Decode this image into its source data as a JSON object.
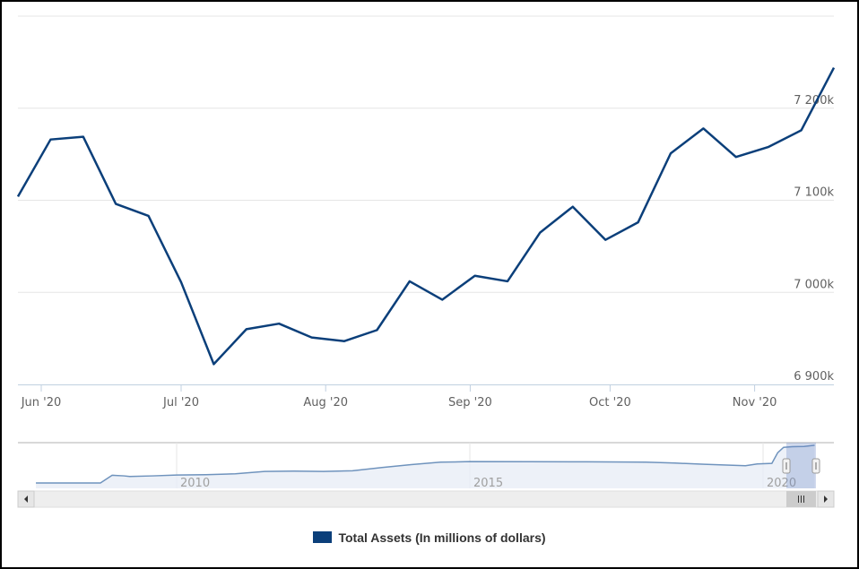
{
  "chart_data": {
    "type": "line",
    "title": "",
    "xlabel": "",
    "ylabel": "",
    "series": [
      {
        "name": "Total Assets (In millions of dollars)",
        "color": "#0b3f7a",
        "x": [
          "2020-05-27",
          "2020-06-03",
          "2020-06-10",
          "2020-06-17",
          "2020-06-24",
          "2020-07-01",
          "2020-07-08",
          "2020-07-15",
          "2020-07-22",
          "2020-07-29",
          "2020-08-05",
          "2020-08-12",
          "2020-08-19",
          "2020-08-26",
          "2020-09-02",
          "2020-09-09",
          "2020-09-16",
          "2020-09-23",
          "2020-09-30",
          "2020-10-07",
          "2020-10-14",
          "2020-10-21",
          "2020-10-28",
          "2020-11-04",
          "2020-11-11",
          "2020-11-18"
        ],
        "y": [
          7104000,
          7166000,
          7169000,
          7096000,
          7083000,
          7011000,
          6922000,
          6960000,
          6966000,
          6951000,
          6947000,
          6959000,
          7012000,
          6992000,
          7018000,
          7012000,
          7065000,
          7093000,
          7057000,
          7076000,
          7151000,
          7178000,
          7147000,
          7158000,
          7176000,
          7244000
        ]
      }
    ],
    "ylim": [
      6900000,
      7300000
    ],
    "yticks": [
      {
        "value": 6900000,
        "label": "6 900k"
      },
      {
        "value": 7000000,
        "label": "7 000k"
      },
      {
        "value": 7100000,
        "label": "7 100k"
      },
      {
        "value": 7200000,
        "label": "7 200k"
      }
    ],
    "xticks": [
      {
        "date": "2020-06-01",
        "label": "Jun '20"
      },
      {
        "date": "2020-07-01",
        "label": "Jul '20"
      },
      {
        "date": "2020-08-01",
        "label": "Aug '20"
      },
      {
        "date": "2020-09-01",
        "label": "Sep '20"
      },
      {
        "date": "2020-10-01",
        "label": "Oct '20"
      },
      {
        "date": "2020-11-01",
        "label": "Nov '20"
      }
    ],
    "grid": true,
    "legend_position": "bottom-center",
    "navigator": {
      "xticks": [
        {
          "year": 2010,
          "label": "2010"
        },
        {
          "year": 2015,
          "label": "2015"
        },
        {
          "year": 2020,
          "label": "2020"
        }
      ],
      "series": [
        [
          2007.6,
          900000
        ],
        [
          2008.7,
          900000
        ],
        [
          2008.9,
          2200000
        ],
        [
          2009.1,
          2100000
        ],
        [
          2009.2,
          2000000
        ],
        [
          2009.6,
          2100000
        ],
        [
          2010.0,
          2250000
        ],
        [
          2010.5,
          2300000
        ],
        [
          2011.0,
          2450000
        ],
        [
          2011.5,
          2850000
        ],
        [
          2012.0,
          2900000
        ],
        [
          2012.5,
          2850000
        ],
        [
          2013.0,
          2950000
        ],
        [
          2013.5,
          3500000
        ],
        [
          2014.0,
          4000000
        ],
        [
          2014.5,
          4400000
        ],
        [
          2015.0,
          4500000
        ],
        [
          2016.0,
          4480000
        ],
        [
          2017.0,
          4470000
        ],
        [
          2018.0,
          4400000
        ],
        [
          2018.5,
          4250000
        ],
        [
          2019.0,
          4050000
        ],
        [
          2019.7,
          3800000
        ],
        [
          2019.9,
          4100000
        ],
        [
          2020.15,
          4200000
        ],
        [
          2020.25,
          6000000
        ],
        [
          2020.35,
          6900000
        ],
        [
          2020.5,
          7000000
        ],
        [
          2020.7,
          7050000
        ],
        [
          2020.88,
          7244000
        ]
      ],
      "selected_range": [
        "2020-05-27",
        "2020-11-18"
      ]
    }
  },
  "legend": {
    "label": "Total Assets (In millions of dollars)"
  }
}
